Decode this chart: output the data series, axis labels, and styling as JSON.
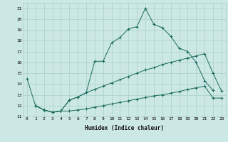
{
  "xlabel": "Humidex (Indice chaleur)",
  "bg_color": "#cce8e4",
  "grid_color": "#aacfca",
  "line_color": "#1a6b5e",
  "xlim": [
    -0.5,
    23.5
  ],
  "ylim": [
    11,
    21.5
  ],
  "xticks": [
    0,
    1,
    2,
    3,
    4,
    5,
    6,
    7,
    8,
    9,
    10,
    11,
    12,
    13,
    14,
    15,
    16,
    17,
    18,
    19,
    20,
    21,
    22,
    23
  ],
  "yticks": [
    11,
    12,
    13,
    14,
    15,
    16,
    17,
    18,
    19,
    20,
    21
  ],
  "line1_x": [
    0,
    1,
    2,
    3,
    4,
    5,
    6,
    7,
    8,
    9,
    10,
    11,
    12,
    13,
    14,
    15,
    16,
    17,
    18,
    19,
    20,
    21,
    22
  ],
  "line1_y": [
    14.5,
    12.0,
    11.6,
    11.4,
    11.5,
    12.5,
    12.8,
    13.2,
    16.1,
    16.1,
    17.8,
    18.3,
    19.1,
    19.3,
    21.0,
    19.5,
    19.2,
    18.4,
    17.3,
    17.0,
    16.0,
    14.3,
    13.4
  ],
  "line2_x": [
    1,
    2,
    3,
    4,
    5,
    6,
    7,
    8,
    9,
    10,
    11,
    12,
    13,
    14,
    15,
    16,
    17,
    18,
    19,
    20,
    21,
    22,
    23
  ],
  "line2_y": [
    12.0,
    11.6,
    11.4,
    11.5,
    11.5,
    11.6,
    11.7,
    11.85,
    12.0,
    12.15,
    12.3,
    12.45,
    12.6,
    12.75,
    12.9,
    13.0,
    13.15,
    13.3,
    13.5,
    13.65,
    13.8,
    12.7,
    12.7
  ],
  "line3_x": [
    1,
    2,
    3,
    4,
    5,
    6,
    7,
    8,
    9,
    10,
    11,
    12,
    13,
    14,
    15,
    16,
    17,
    18,
    19,
    20,
    21,
    22,
    23
  ],
  "line3_y": [
    12.0,
    11.6,
    11.4,
    11.5,
    12.5,
    12.8,
    13.2,
    13.5,
    13.8,
    14.1,
    14.4,
    14.7,
    15.0,
    15.3,
    15.5,
    15.8,
    16.0,
    16.2,
    16.4,
    16.6,
    16.8,
    15.0,
    13.35
  ]
}
